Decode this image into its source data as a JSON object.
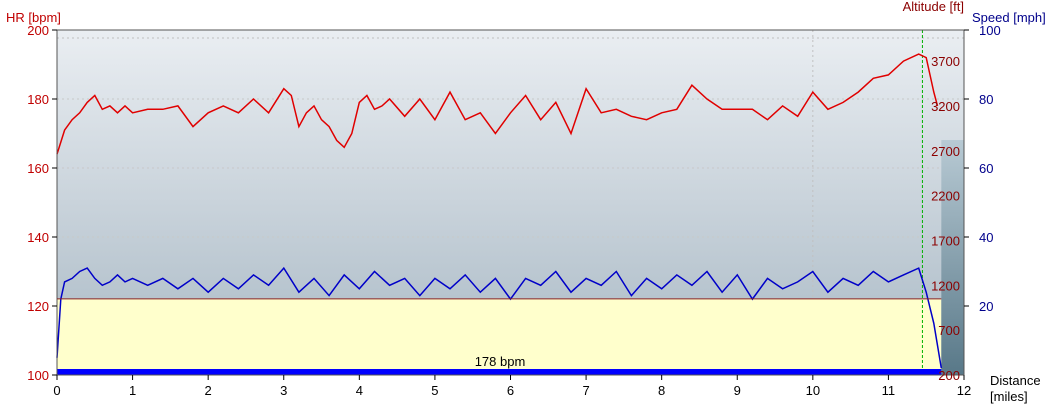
{
  "chart_data": {
    "type": "line",
    "title": "",
    "xlabel": "Distance",
    "xunit": "[miles]",
    "xlim": [
      0,
      12
    ],
    "x_ticks": [
      0,
      1,
      2,
      3,
      4,
      5,
      6,
      7,
      8,
      9,
      10,
      11,
      12
    ],
    "axes": {
      "hr": {
        "label": "HR [bpm]",
        "lim": [
          100,
          200
        ],
        "ticks": [
          100,
          120,
          140,
          160,
          180,
          200
        ]
      },
      "altitude": {
        "label": "Altitude [ft]",
        "ticks": [
          200,
          700,
          1200,
          1700,
          2200,
          2700,
          3200,
          3700
        ]
      },
      "speed": {
        "label": "Speed [mph]",
        "lim": [
          0,
          100
        ],
        "ticks": [
          20,
          40,
          60,
          80,
          100
        ]
      }
    },
    "annotation": "178 bpm",
    "grid": true,
    "colors": {
      "hr_line": "#e00000",
      "speed_line": "#0000c8",
      "altitude_fill": "#ffffcc",
      "altitude_outline": "#8b2020",
      "background_top": "#c8d2dc",
      "hr_bar": "#0000ff",
      "selection": "#6e8c9c",
      "marker": "#00b000"
    },
    "series": [
      {
        "name": "HR [bpm]",
        "axis": "hr",
        "x": [
          0,
          0.1,
          0.2,
          0.3,
          0.4,
          0.5,
          0.6,
          0.7,
          0.8,
          0.9,
          1.0,
          1.2,
          1.4,
          1.6,
          1.8,
          2.0,
          2.2,
          2.4,
          2.6,
          2.8,
          3.0,
          3.1,
          3.2,
          3.3,
          3.4,
          3.5,
          3.6,
          3.7,
          3.8,
          3.9,
          4.0,
          4.1,
          4.2,
          4.3,
          4.4,
          4.6,
          4.8,
          5.0,
          5.2,
          5.4,
          5.6,
          5.8,
          6.0,
          6.2,
          6.4,
          6.6,
          6.8,
          7.0,
          7.2,
          7.4,
          7.6,
          7.8,
          8.0,
          8.2,
          8.4,
          8.6,
          8.8,
          9.0,
          9.2,
          9.4,
          9.6,
          9.8,
          10.0,
          10.2,
          10.4,
          10.6,
          10.8,
          11.0,
          11.2,
          11.4,
          11.5,
          11.6,
          11.65
        ],
        "values": [
          164,
          171,
          174,
          176,
          179,
          181,
          177,
          178,
          176,
          178,
          176,
          177,
          177,
          178,
          172,
          176,
          178,
          176,
          180,
          176,
          183,
          181,
          172,
          176,
          178,
          174,
          172,
          168,
          166,
          170,
          179,
          181,
          177,
          178,
          180,
          175,
          180,
          174,
          182,
          174,
          176,
          170,
          176,
          181,
          174,
          179,
          170,
          183,
          176,
          177,
          175,
          174,
          176,
          177,
          184,
          180,
          177,
          177,
          177,
          174,
          178,
          175,
          182,
          177,
          179,
          182,
          186,
          187,
          191,
          193,
          192,
          182,
          178
        ]
      },
      {
        "name": "Speed [mph]",
        "axis": "speed",
        "x": [
          0,
          0.05,
          0.1,
          0.2,
          0.3,
          0.4,
          0.5,
          0.6,
          0.7,
          0.8,
          0.9,
          1.0,
          1.2,
          1.4,
          1.6,
          1.8,
          2.0,
          2.2,
          2.4,
          2.6,
          2.8,
          3.0,
          3.2,
          3.4,
          3.6,
          3.8,
          4.0,
          4.2,
          4.4,
          4.6,
          4.8,
          5.0,
          5.2,
          5.4,
          5.6,
          5.8,
          6.0,
          6.2,
          6.4,
          6.6,
          6.8,
          7.0,
          7.2,
          7.4,
          7.6,
          7.8,
          8.0,
          8.2,
          8.4,
          8.6,
          8.8,
          9.0,
          9.2,
          9.4,
          9.6,
          9.8,
          10.0,
          10.2,
          10.4,
          10.6,
          10.8,
          11.0,
          11.2,
          11.4,
          11.5,
          11.6,
          11.7
        ],
        "values": [
          5,
          22,
          27,
          28,
          30,
          31,
          28,
          26,
          27,
          29,
          27,
          28,
          26,
          28,
          25,
          28,
          24,
          28,
          25,
          29,
          26,
          31,
          24,
          28,
          23,
          29,
          25,
          30,
          26,
          28,
          23,
          28,
          25,
          29,
          24,
          28,
          22,
          28,
          26,
          30,
          24,
          28,
          26,
          30,
          23,
          28,
          25,
          29,
          26,
          30,
          24,
          29,
          22,
          28,
          25,
          27,
          30,
          24,
          28,
          26,
          30,
          27,
          29,
          31,
          24,
          15,
          2
        ]
      },
      {
        "name": "Altitude [ft]",
        "axis": "altitude",
        "x": [
          0,
          11.7
        ],
        "values": [
          1050,
          1050
        ]
      }
    ]
  }
}
